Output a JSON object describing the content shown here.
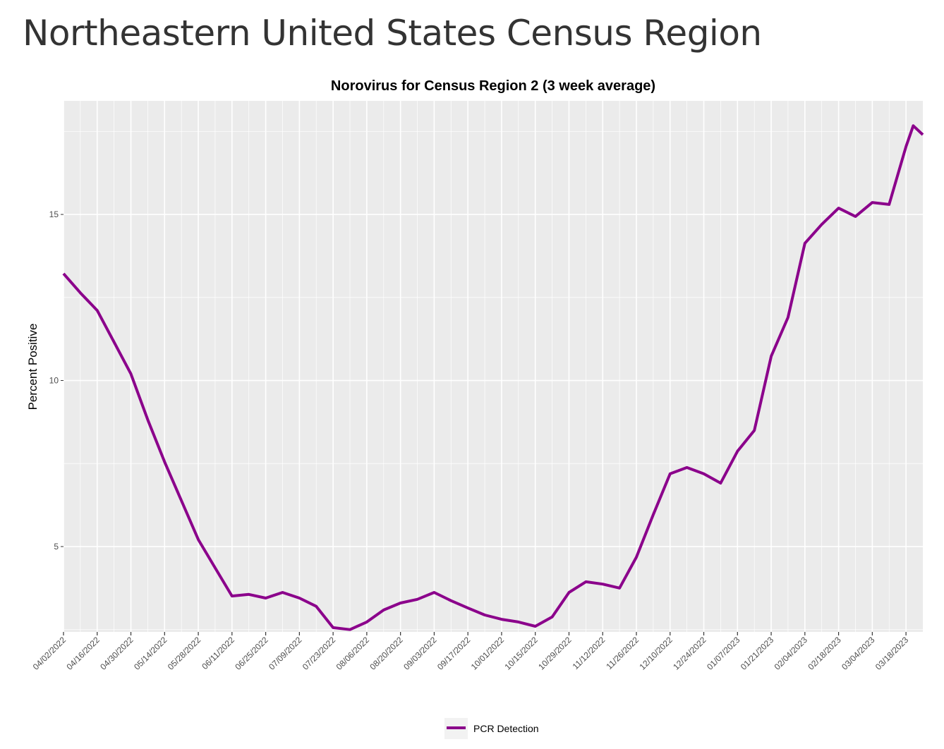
{
  "page_title": "Northeastern United States Census Region",
  "chart_data": {
    "type": "line",
    "title": "Norovirus for Census Region 2 (3 week average)",
    "xlabel": "",
    "ylabel": "Percent Positive",
    "ylim": [
      2.43,
      18.42
    ],
    "yticks": [
      5,
      10,
      15
    ],
    "xticks": [
      "04/02/2022",
      "04/16/2022",
      "04/30/2022",
      "05/14/2022",
      "05/28/2022",
      "06/11/2022",
      "06/25/2022",
      "07/09/2022",
      "07/23/2022",
      "08/06/2022",
      "08/20/2022",
      "09/03/2022",
      "09/17/2022",
      "10/01/2022",
      "10/15/2022",
      "10/29/2022",
      "11/12/2022",
      "11/26/2022",
      "12/10/2022",
      "12/24/2022",
      "01/07/2023",
      "01/21/2023",
      "02/04/2023",
      "02/18/2023",
      "03/04/2023",
      "03/18/2023"
    ],
    "xlim": [
      "04/02/2022",
      "03/25/2023"
    ],
    "grid": true,
    "legend_position": "bottom",
    "series": [
      {
        "name": "PCR Detection",
        "color": "#8B008B",
        "x": [
          "04/02/2022",
          "04/09/2022",
          "04/16/2022",
          "04/23/2022",
          "04/30/2022",
          "05/07/2022",
          "05/14/2022",
          "05/21/2022",
          "05/28/2022",
          "06/04/2022",
          "06/11/2022",
          "06/18/2022",
          "06/25/2022",
          "07/02/2022",
          "07/09/2022",
          "07/16/2022",
          "07/23/2022",
          "07/30/2022",
          "08/06/2022",
          "08/13/2022",
          "08/20/2022",
          "08/27/2022",
          "09/03/2022",
          "09/10/2022",
          "09/17/2022",
          "09/24/2022",
          "10/01/2022",
          "10/08/2022",
          "10/15/2022",
          "10/22/2022",
          "10/29/2022",
          "11/05/2022",
          "11/12/2022",
          "11/19/2022",
          "11/26/2022",
          "12/03/2022",
          "12/10/2022",
          "12/17/2022",
          "12/24/2022",
          "12/31/2022",
          "01/07/2023",
          "01/14/2023",
          "01/21/2023",
          "01/28/2023",
          "02/04/2023",
          "02/11/2023",
          "02/18/2023",
          "02/25/2023",
          "03/04/2023",
          "03/11/2023",
          "03/18/2023",
          "03/21/2023",
          "03/25/2023"
        ],
        "values": [
          13.22,
          12.64,
          12.11,
          11.16,
          10.2,
          8.82,
          7.55,
          6.38,
          5.21,
          4.36,
          3.51,
          3.56,
          3.45,
          3.62,
          3.45,
          3.2,
          2.56,
          2.5,
          2.73,
          3.09,
          3.3,
          3.41,
          3.62,
          3.37,
          3.15,
          2.94,
          2.81,
          2.73,
          2.6,
          2.88,
          3.62,
          3.94,
          3.87,
          3.75,
          4.68,
          5.96,
          7.19,
          7.38,
          7.19,
          6.91,
          7.87,
          8.5,
          10.73,
          11.9,
          14.13,
          14.7,
          15.19,
          14.94,
          15.36,
          15.3,
          17.04,
          17.67,
          17.4
        ]
      }
    ]
  }
}
